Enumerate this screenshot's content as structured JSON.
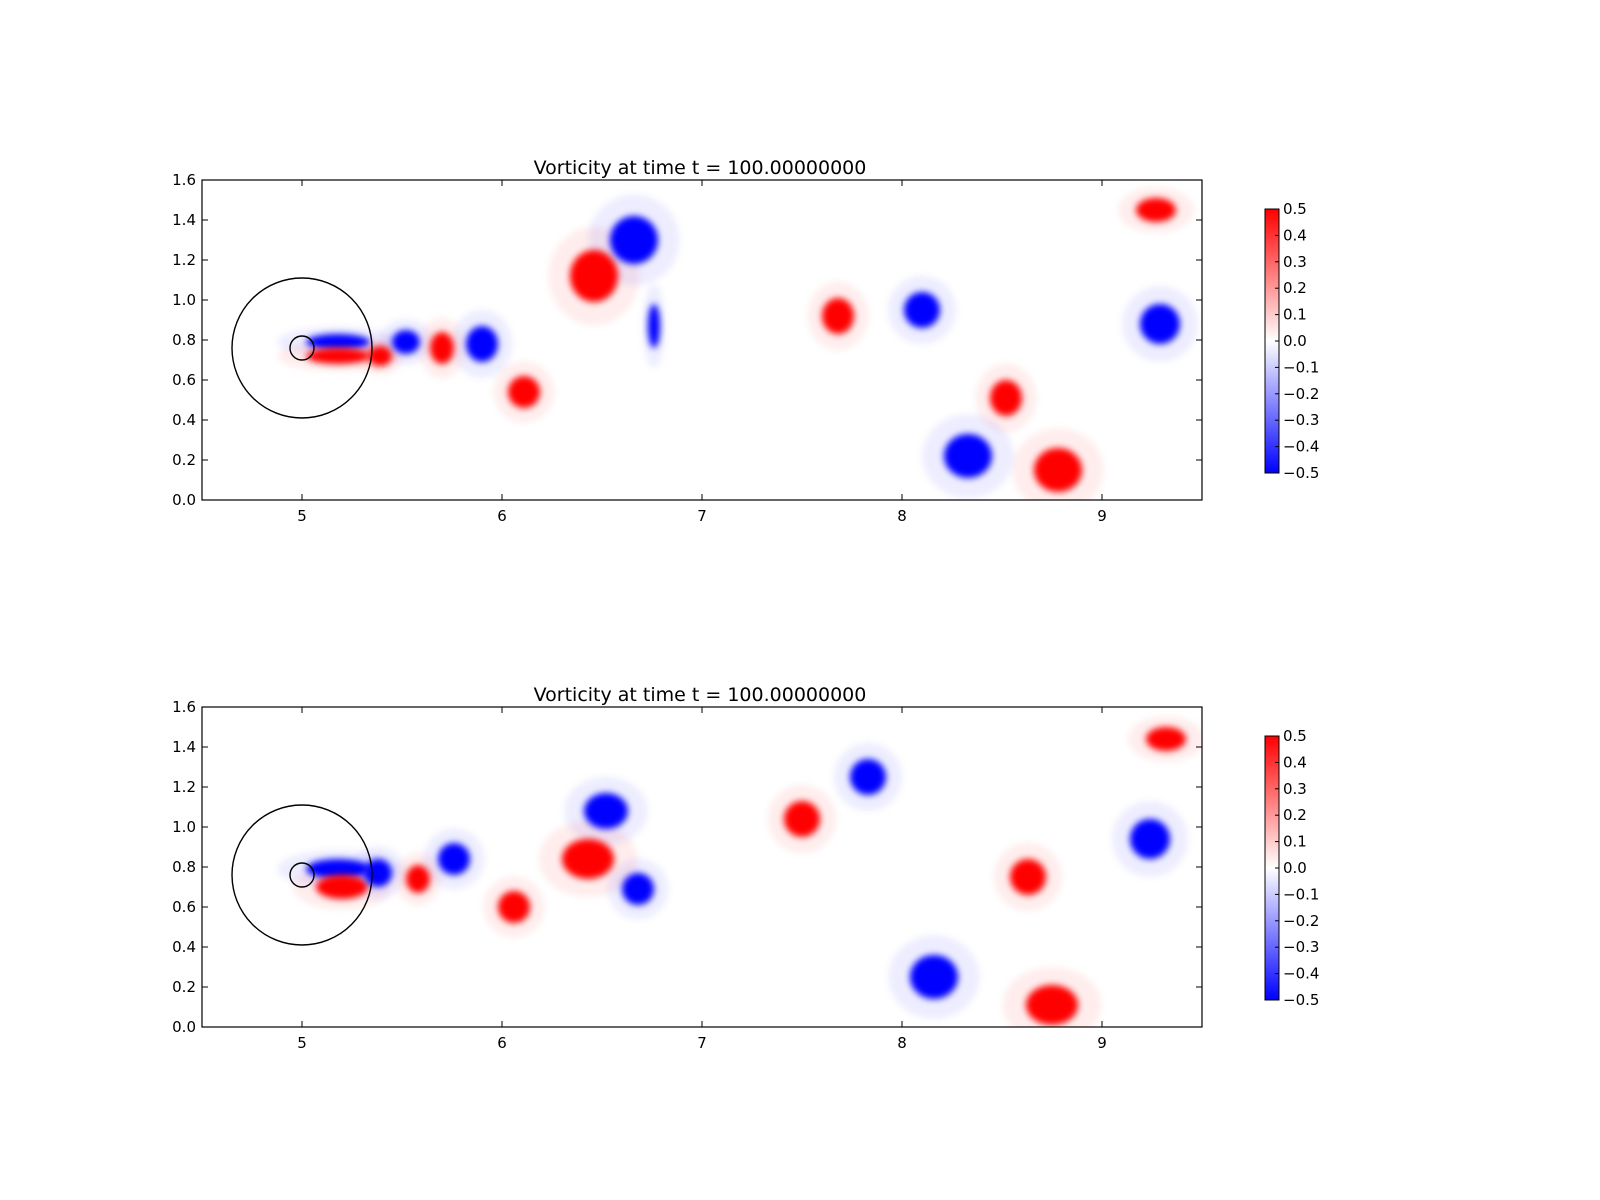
{
  "chart_data": [
    {
      "type": "heatmap",
      "title": "Vorticity at time t =    100.00000000",
      "xlim": [
        4.5,
        9.5
      ],
      "ylim": [
        0.0,
        1.6
      ],
      "xticks": [
        5,
        6,
        7,
        8,
        9
      ],
      "xtick_labels": [
        "5",
        "6",
        "7",
        "8",
        "9"
      ],
      "yticks": [
        0.0,
        0.2,
        0.4,
        0.6,
        0.8,
        1.0,
        1.2,
        1.4,
        1.6
      ],
      "ytick_labels": [
        "0.0",
        "0.2",
        "0.4",
        "0.6",
        "0.8",
        "1.0",
        "1.2",
        "1.4",
        "1.6"
      ],
      "colorbar": {
        "range": [
          -0.5,
          0.5
        ],
        "ticks": [
          -0.5,
          -0.4,
          -0.3,
          -0.2,
          -0.1,
          0.0,
          0.1,
          0.2,
          0.3,
          0.4,
          0.5
        ],
        "tick_labels": [
          "−0.5",
          "−0.4",
          "−0.3",
          "−0.2",
          "−0.1",
          "0.0",
          "0.1",
          "0.2",
          "0.3",
          "0.4",
          "0.5"
        ],
        "colors": {
          "negative": "#0000ff",
          "zero": "#ffffff",
          "positive": "#ff0000"
        }
      },
      "circles": [
        {
          "cx": 5.0,
          "cy": 0.76,
          "r": 0.35
        },
        {
          "cx": 5.0,
          "cy": 0.76,
          "r": 0.06
        }
      ],
      "vortices": [
        {
          "x": 5.18,
          "y": 0.79,
          "rx": 0.16,
          "ry": 0.04,
          "value": -0.5
        },
        {
          "x": 5.18,
          "y": 0.72,
          "rx": 0.16,
          "ry": 0.04,
          "value": 0.5
        },
        {
          "x": 5.39,
          "y": 0.72,
          "rx": 0.06,
          "ry": 0.05,
          "value": 0.5
        },
        {
          "x": 5.52,
          "y": 0.79,
          "rx": 0.07,
          "ry": 0.06,
          "value": -0.5
        },
        {
          "x": 5.7,
          "y": 0.76,
          "rx": 0.06,
          "ry": 0.08,
          "value": 0.5
        },
        {
          "x": 5.9,
          "y": 0.78,
          "rx": 0.08,
          "ry": 0.09,
          "value": -0.5
        },
        {
          "x": 6.11,
          "y": 0.54,
          "rx": 0.08,
          "ry": 0.08,
          "value": 0.5
        },
        {
          "x": 6.46,
          "y": 1.12,
          "rx": 0.12,
          "ry": 0.13,
          "value": 0.5
        },
        {
          "x": 6.66,
          "y": 1.3,
          "rx": 0.12,
          "ry": 0.12,
          "value": -0.5
        },
        {
          "x": 6.76,
          "y": 0.87,
          "rx": 0.03,
          "ry": 0.11,
          "value": -0.5
        },
        {
          "x": 7.68,
          "y": 0.92,
          "rx": 0.08,
          "ry": 0.09,
          "value": 0.5
        },
        {
          "x": 8.1,
          "y": 0.95,
          "rx": 0.09,
          "ry": 0.09,
          "value": -0.5
        },
        {
          "x": 8.52,
          "y": 0.51,
          "rx": 0.08,
          "ry": 0.09,
          "value": 0.5
        },
        {
          "x": 8.33,
          "y": 0.22,
          "rx": 0.12,
          "ry": 0.11,
          "value": -0.5
        },
        {
          "x": 8.78,
          "y": 0.15,
          "rx": 0.12,
          "ry": 0.11,
          "value": 0.5
        },
        {
          "x": 9.27,
          "y": 1.45,
          "rx": 0.1,
          "ry": 0.06,
          "value": 0.5
        },
        {
          "x": 9.29,
          "y": 0.88,
          "rx": 0.1,
          "ry": 0.1,
          "value": -0.5
        }
      ]
    },
    {
      "type": "heatmap",
      "title": "Vorticity at time t =    100.00000000",
      "xlim": [
        4.5,
        9.5
      ],
      "ylim": [
        0.0,
        1.6
      ],
      "xticks": [
        5,
        6,
        7,
        8,
        9
      ],
      "xtick_labels": [
        "5",
        "6",
        "7",
        "8",
        "9"
      ],
      "yticks": [
        0.0,
        0.2,
        0.4,
        0.6,
        0.8,
        1.0,
        1.2,
        1.4,
        1.6
      ],
      "ytick_labels": [
        "0.0",
        "0.2",
        "0.4",
        "0.6",
        "0.8",
        "1.0",
        "1.2",
        "1.4",
        "1.6"
      ],
      "colorbar": {
        "range": [
          -0.5,
          0.5
        ],
        "ticks": [
          -0.5,
          -0.4,
          -0.3,
          -0.2,
          -0.1,
          0.0,
          0.1,
          0.2,
          0.3,
          0.4,
          0.5
        ],
        "tick_labels": [
          "−0.5",
          "−0.4",
          "−0.3",
          "−0.2",
          "−0.1",
          "0.0",
          "0.1",
          "0.2",
          "0.3",
          "0.4",
          "0.5"
        ],
        "colors": {
          "negative": "#0000ff",
          "zero": "#ffffff",
          "positive": "#ff0000"
        }
      },
      "circles": [
        {
          "cx": 5.0,
          "cy": 0.76,
          "r": 0.35
        },
        {
          "cx": 5.0,
          "cy": 0.76,
          "r": 0.06
        }
      ],
      "vortices": [
        {
          "x": 5.18,
          "y": 0.79,
          "rx": 0.16,
          "ry": 0.05,
          "value": -0.5
        },
        {
          "x": 5.2,
          "y": 0.7,
          "rx": 0.13,
          "ry": 0.06,
          "value": 0.5
        },
        {
          "x": 5.38,
          "y": 0.77,
          "rx": 0.07,
          "ry": 0.07,
          "value": -0.5
        },
        {
          "x": 5.58,
          "y": 0.74,
          "rx": 0.06,
          "ry": 0.07,
          "value": 0.5
        },
        {
          "x": 5.76,
          "y": 0.84,
          "rx": 0.08,
          "ry": 0.08,
          "value": -0.5
        },
        {
          "x": 6.06,
          "y": 0.6,
          "rx": 0.08,
          "ry": 0.08,
          "value": 0.5
        },
        {
          "x": 6.52,
          "y": 1.08,
          "rx": 0.11,
          "ry": 0.09,
          "value": -0.5
        },
        {
          "x": 6.43,
          "y": 0.84,
          "rx": 0.13,
          "ry": 0.1,
          "value": 0.5
        },
        {
          "x": 6.68,
          "y": 0.69,
          "rx": 0.08,
          "ry": 0.08,
          "value": -0.5
        },
        {
          "x": 7.5,
          "y": 1.04,
          "rx": 0.09,
          "ry": 0.09,
          "value": 0.5
        },
        {
          "x": 7.83,
          "y": 1.25,
          "rx": 0.09,
          "ry": 0.09,
          "value": -0.5
        },
        {
          "x": 8.63,
          "y": 0.75,
          "rx": 0.09,
          "ry": 0.09,
          "value": 0.5
        },
        {
          "x": 8.16,
          "y": 0.25,
          "rx": 0.12,
          "ry": 0.11,
          "value": -0.5
        },
        {
          "x": 8.75,
          "y": 0.11,
          "rx": 0.13,
          "ry": 0.1,
          "value": 0.5
        },
        {
          "x": 9.32,
          "y": 1.44,
          "rx": 0.1,
          "ry": 0.06,
          "value": 0.5
        },
        {
          "x": 9.24,
          "y": 0.94,
          "rx": 0.1,
          "ry": 0.1,
          "value": -0.5
        }
      ]
    }
  ]
}
